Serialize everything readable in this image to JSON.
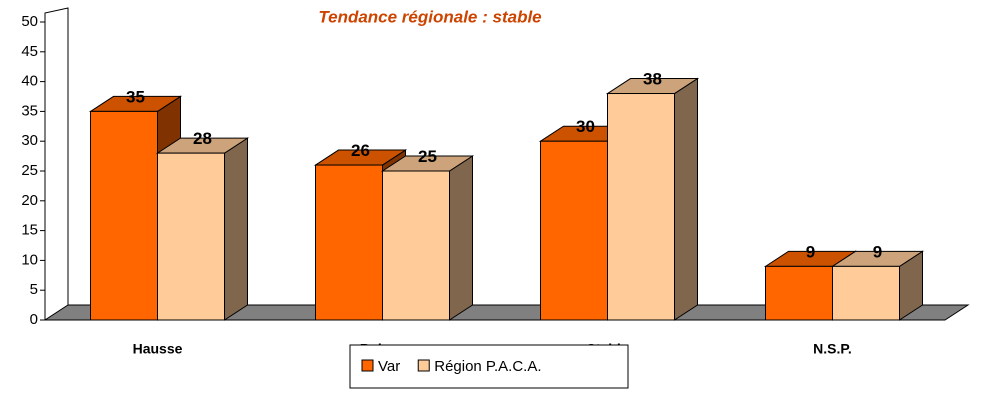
{
  "chart_data": {
    "type": "bar3d",
    "title": "Tendance régionale : stable",
    "categories": [
      "Hausse",
      "Baisse",
      "Stable",
      "N.S.P."
    ],
    "series": [
      {
        "name": "Var",
        "color": "#FF6600",
        "values": [
          35,
          26,
          30,
          9
        ]
      },
      {
        "name": "Région P.A.C.A.",
        "color": "#FFCC99",
        "values": [
          28,
          25,
          38,
          9
        ]
      }
    ],
    "ylim": [
      0,
      50
    ],
    "yticks": [
      0,
      5,
      10,
      15,
      20,
      25,
      30,
      35,
      40,
      45,
      50
    ],
    "legend": "bottom"
  }
}
